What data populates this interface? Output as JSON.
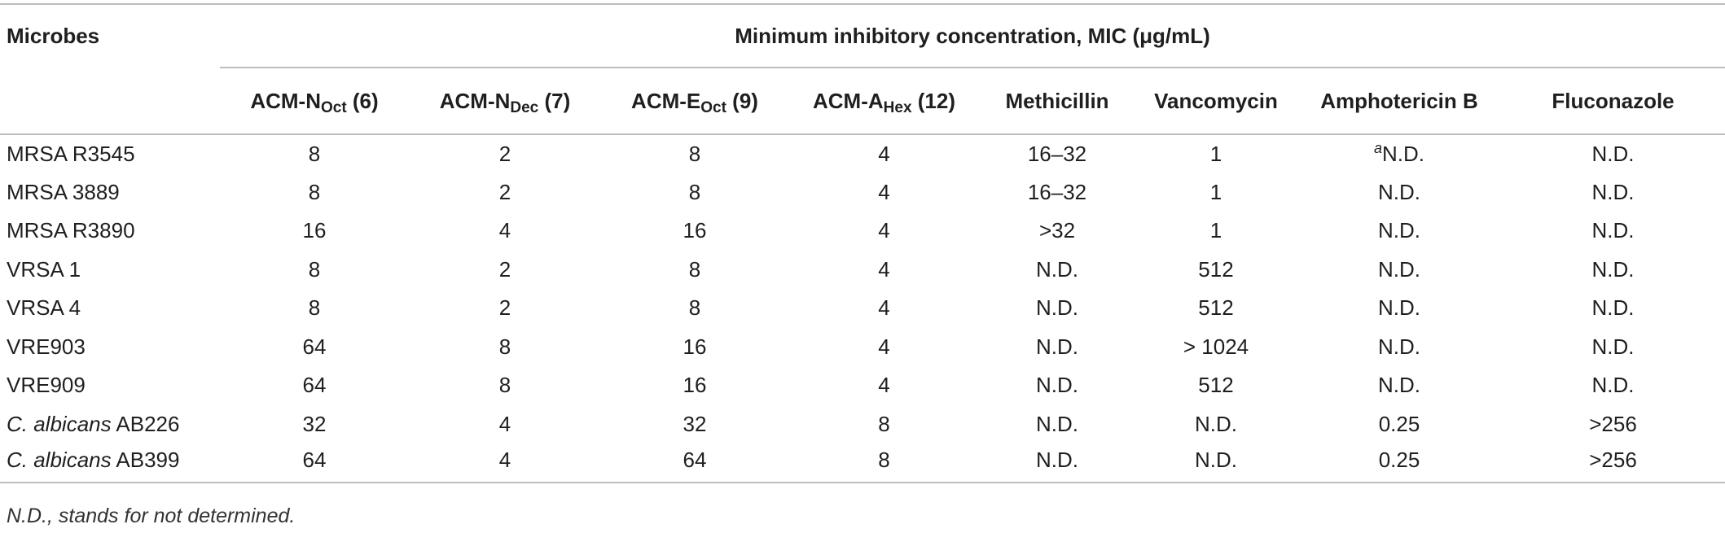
{
  "table": {
    "microbes_header": "Microbes",
    "span_header": "Minimum inhibitory concentration, MIC (μg/mL)",
    "columns": [
      {
        "main": "ACM-N",
        "sub": "Oct",
        "suffix": " (6)"
      },
      {
        "main": "ACM-N",
        "sub": "Dec",
        "suffix": " (7)"
      },
      {
        "main": "ACM-E",
        "sub": "Oct",
        "suffix": " (9)"
      },
      {
        "main": "ACM-A",
        "sub": "Hex",
        "suffix": " (12)"
      },
      {
        "main": "Methicillin",
        "sub": "",
        "suffix": ""
      },
      {
        "main": "Vancomycin",
        "sub": "",
        "suffix": ""
      },
      {
        "main": "Amphotericin B",
        "sub": "",
        "suffix": ""
      },
      {
        "main": "Fluconazole",
        "sub": "",
        "suffix": ""
      }
    ],
    "rows": [
      {
        "name_italic": "",
        "name": "MRSA R3545",
        "values": [
          "8",
          "2",
          "8",
          "4",
          "16–32",
          "1",
          "N.D.",
          "N.D."
        ],
        "note_col": 6,
        "note": "a"
      },
      {
        "name_italic": "",
        "name": "MRSA 3889",
        "values": [
          "8",
          "2",
          "8",
          "4",
          "16–32",
          "1",
          "N.D.",
          "N.D."
        ]
      },
      {
        "name_italic": "",
        "name": "MRSA R3890",
        "values": [
          "16",
          "4",
          "16",
          "4",
          ">32",
          "1",
          "N.D.",
          "N.D."
        ]
      },
      {
        "name_italic": "",
        "name": "VRSA 1",
        "values": [
          "8",
          "2",
          "8",
          "4",
          "N.D.",
          "512",
          "N.D.",
          "N.D."
        ]
      },
      {
        "name_italic": "",
        "name": "VRSA 4",
        "values": [
          "8",
          "2",
          "8",
          "4",
          "N.D.",
          "512",
          "N.D.",
          "N.D."
        ]
      },
      {
        "name_italic": "",
        "name": "VRE903",
        "values": [
          "64",
          "8",
          "16",
          "4",
          "N.D.",
          "> 1024",
          "N.D.",
          "N.D."
        ]
      },
      {
        "name_italic": "",
        "name": "VRE909",
        "values": [
          "64",
          "8",
          "16",
          "4",
          "N.D.",
          "512",
          "N.D.",
          "N.D."
        ]
      },
      {
        "name_italic": "C. albicans",
        "name": " AB226",
        "values": [
          "32",
          "4",
          "32",
          "8",
          "N.D.",
          "N.D.",
          "0.25",
          ">256"
        ]
      },
      {
        "name_italic": "C. albicans",
        "name": " AB399",
        "values": [
          "64",
          "4",
          "64",
          "8",
          "N.D.",
          "N.D.",
          "0.25",
          ">256"
        ]
      }
    ]
  },
  "footnote": "N.D., stands for not determined."
}
